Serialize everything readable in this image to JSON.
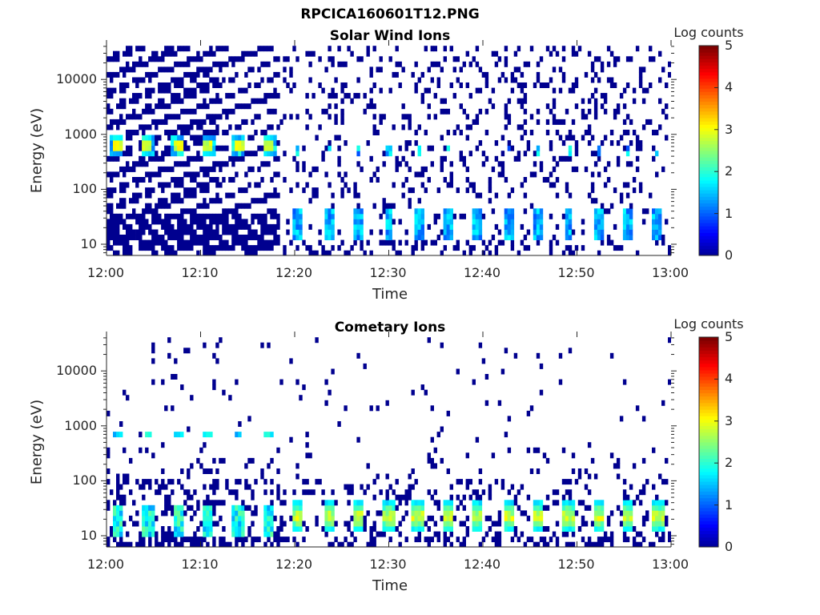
{
  "page_title": "RPCICA160601T12.PNG",
  "chart_data": [
    {
      "type": "heatmap",
      "title": "Solar Wind Ions",
      "xlabel": "Time",
      "ylabel": "Energy (eV)",
      "xticks": [
        "12:00",
        "12:10",
        "12:20",
        "12:30",
        "12:40",
        "12:50",
        "13:00"
      ],
      "xlim_minutes": [
        0,
        60
      ],
      "yscale": "log",
      "ylim": [
        6.2,
        41000
      ],
      "yticks": [
        "10",
        "100",
        "1000",
        "10000"
      ],
      "colorbar": {
        "label": "Log counts",
        "range": [
          0,
          5
        ],
        "ticks": [
          "0",
          "1",
          "2",
          "3",
          "4",
          "5"
        ]
      },
      "burst_period_min": 3.2,
      "early_bursts": {
        "times_min": [
          1.1,
          4.4,
          7.6,
          10.8,
          14.0,
          17.3
        ],
        "energy_eV": 600,
        "peak_log_counts": 3.0
      },
      "late_bursts": {
        "times_min": [
          20.3,
          23.6,
          26.8,
          30.0,
          33.1,
          36.3,
          39.5,
          42.7,
          45.9,
          49.1,
          52.3,
          55.5,
          58.6
        ],
        "energy_eV": [
          15,
          40
        ],
        "peak_log_counts": 1.6,
        "secondary_energy_eV": 550,
        "secondary_log_counts": 1.5
      },
      "background": {
        "early_density": 0.55,
        "late_density": 0.17
      }
    },
    {
      "type": "heatmap",
      "title": "Cometary Ions",
      "xlabel": "Time",
      "ylabel": "Energy (eV)",
      "xticks": [
        "12:00",
        "12:10",
        "12:20",
        "12:30",
        "12:40",
        "12:50",
        "13:00"
      ],
      "xlim_minutes": [
        0,
        60
      ],
      "yscale": "log",
      "ylim": [
        6.2,
        41000
      ],
      "yticks": [
        "10",
        "100",
        "1000",
        "10000"
      ],
      "colorbar": {
        "label": "Log counts",
        "range": [
          0,
          5
        ],
        "ticks": [
          "0",
          "1",
          "2",
          "3",
          "4",
          "5"
        ]
      },
      "burst_period_min": 3.2,
      "early_bursts": {
        "times_min": [
          1.1,
          4.4,
          7.6,
          10.8,
          14.0,
          17.3
        ],
        "energy_eV": 650,
        "peak_log_counts": 1.8,
        "low_energy_eV": [
          10,
          35
        ],
        "low_log_counts": 2.0
      },
      "late_bursts": {
        "times_min": [
          20.3,
          23.6,
          26.8,
          30.0,
          33.1,
          36.3,
          39.5,
          42.7,
          45.9,
          49.1,
          52.3,
          55.5,
          58.6
        ],
        "energy_eV": [
          12,
          45
        ],
        "peak_log_counts": 2.6
      },
      "background": {
        "early_density": 0.06,
        "late_density": 0.04
      }
    }
  ]
}
